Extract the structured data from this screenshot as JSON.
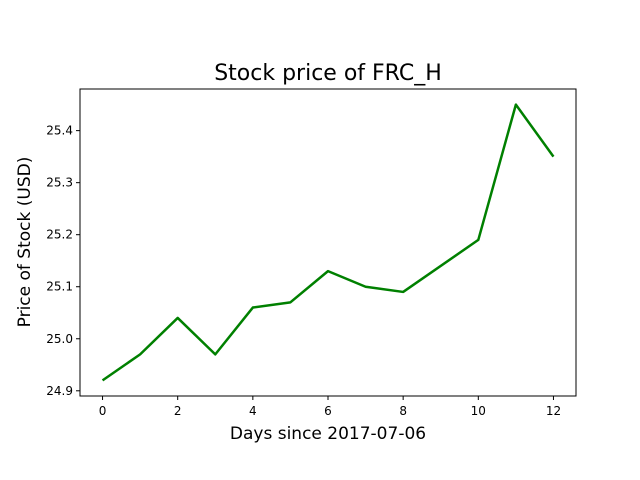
{
  "chart_data": {
    "type": "line",
    "title": "Stock price of FRC_H",
    "xlabel": "Days since 2017-07-06",
    "ylabel": "Price of Stock (USD)",
    "xlim": [
      -0.6,
      12.6
    ],
    "ylim": [
      24.89,
      25.48
    ],
    "xticks": [
      0,
      2,
      4,
      6,
      8,
      10,
      12
    ],
    "yticks": [
      24.9,
      25.0,
      25.1,
      25.2,
      25.3,
      25.4
    ],
    "xtick_labels": [
      "0",
      "2",
      "4",
      "6",
      "8",
      "10",
      "12"
    ],
    "ytick_labels": [
      "24.9",
      "25.0",
      "25.1",
      "25.2",
      "25.3",
      "25.4"
    ],
    "grid": false,
    "legend": "none",
    "series": [
      {
        "color": "#008000",
        "x": [
          0,
          1,
          2,
          3,
          4,
          5,
          6,
          7,
          8,
          10,
          11,
          12
        ],
        "y": [
          24.92,
          24.97,
          25.04,
          24.97,
          25.06,
          25.07,
          25.13,
          25.1,
          25.09,
          25.19,
          25.45,
          25.35
        ]
      }
    ]
  }
}
